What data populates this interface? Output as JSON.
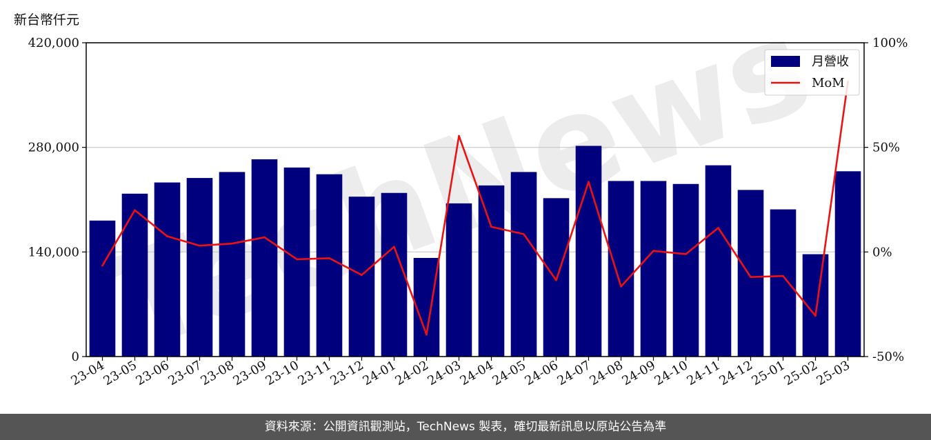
{
  "chart_data": {
    "type": "bar",
    "title": "",
    "y_unit_label": "新台幣仟元",
    "categories": [
      "23-04",
      "23-05",
      "23-06",
      "23-07",
      "23-08",
      "23-09",
      "23-10",
      "23-11",
      "23-12",
      "24-01",
      "24-02",
      "24-03",
      "24-04",
      "24-05",
      "24-06",
      "24-07",
      "24-08",
      "24-09",
      "24-10",
      "24-11",
      "24-12",
      "25-01",
      "25-02",
      "25-03"
    ],
    "series": [
      {
        "name": "月營收",
        "kind": "bar",
        "axis": "left",
        "color": "#00007f",
        "values": [
          182000,
          218000,
          233000,
          239000,
          247000,
          264000,
          253000,
          244000,
          214000,
          219000,
          132000,
          205000,
          229000,
          247000,
          212000,
          282000,
          235000,
          235000,
          231000,
          256000,
          223000,
          197000,
          137000,
          248000
        ]
      },
      {
        "name": "MoM",
        "kind": "line",
        "axis": "right",
        "color": "#ee1111",
        "values": [
          -6.5,
          20.0,
          7.5,
          3.0,
          4.0,
          7.0,
          -3.5,
          -3.0,
          -11.0,
          2.5,
          -39.5,
          55.5,
          12.0,
          8.5,
          -13.5,
          33.5,
          -16.5,
          0.5,
          -1.0,
          11.5,
          -12.0,
          -11.5,
          -30.5,
          81.5
        ]
      }
    ],
    "y_left": {
      "min": 0,
      "max": 420000,
      "ticks": [
        0,
        140000,
        280000,
        420000
      ],
      "tick_labels": [
        "0",
        "140,000",
        "280,000",
        "420,000"
      ]
    },
    "y_right": {
      "min": -50,
      "max": 100,
      "ticks": [
        -50,
        0,
        50,
        100
      ],
      "tick_labels": [
        "-50%",
        "0%",
        "50%",
        "100%"
      ]
    },
    "grid": "horizontal",
    "legend_position": "top-right"
  },
  "footer": {
    "text": "資料來源：公開資訊觀測站，TechNews 製表，確切最新訊息以原站公告為準"
  },
  "watermark": {
    "text": "TechNews"
  }
}
